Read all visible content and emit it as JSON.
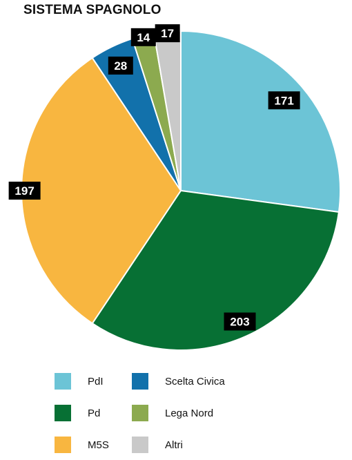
{
  "chart_data": {
    "type": "pie",
    "title": "SISTEMA SPAGNOLO",
    "slices": [
      {
        "label": "PdI",
        "value": 171,
        "color": "#6cc4d6"
      },
      {
        "label": "Pd",
        "value": 203,
        "color": "#077034"
      },
      {
        "label": "M5S",
        "value": 197,
        "color": "#f8b640"
      },
      {
        "label": "Scelta Civica",
        "value": 28,
        "color": "#1271ab"
      },
      {
        "label": "Lega Nord",
        "value": 14,
        "color": "#8caa4f"
      },
      {
        "label": "Altri",
        "value": 17,
        "color": "#c9c9c9"
      }
    ],
    "legend": {
      "placement": "bottom",
      "columns": [
        [
          "PdI",
          "Pd",
          "M5S"
        ],
        [
          "Scelta Civica",
          "Lega Nord",
          "Altri"
        ]
      ]
    },
    "data_label_style": {
      "background": "#000000",
      "text_color": "#ffffff"
    }
  }
}
